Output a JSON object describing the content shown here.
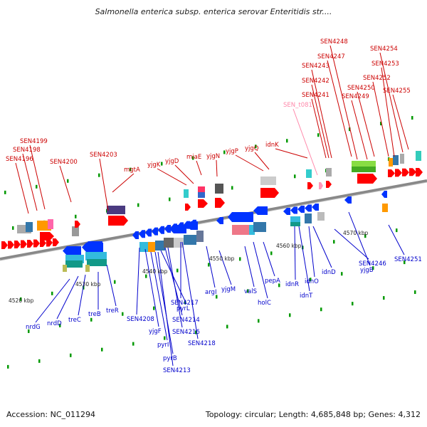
{
  "title": "Salmonella enterica subsp. enterica serovar Enteritidis str....",
  "accession": "Accession: NC_011294",
  "summary": "Topology: circular; Length: 4,685,848 bp; Genes: 4,312",
  "colors": {
    "plus_strand_label": "#cc0000",
    "minus_strand_label": "#0000cc",
    "rna_label": "#ff88aa",
    "plus_gene": "#ff0000",
    "minus_gene": "#0033ff",
    "backbone": "#888888"
  },
  "scale_labels": [
    "4520 kbp",
    "4530 kbp",
    "4540 kbp",
    "4550 kbp",
    "4560 kbp",
    "4570 kbp"
  ],
  "top_labels": [
    "SEN4196",
    "SEN4198",
    "SEN4199",
    "SEN4200",
    "SEN4203",
    "mgtA",
    "yjgK",
    "yjgD",
    "miaE",
    "yjgN",
    "yjgP",
    "yjgQ",
    "idnK",
    "SEN_t081",
    "SEN4241",
    "SEN4242",
    "SEN4243",
    "SEN4247",
    "SEN4248",
    "SEN4249",
    "SEN4250",
    "SEN4252",
    "SEN4253",
    "SEN4254",
    "SEN4255"
  ],
  "bottom_labels": [
    "nrdG",
    "nrdD",
    "treC",
    "treB",
    "treR",
    "SEN4208",
    "yjgF",
    "pyrI",
    "pyrB",
    "SEN4213",
    "pyrL",
    "SEN4214",
    "SEN4216",
    "SEN4217",
    "SEN4218",
    "argI",
    "yjgM",
    "valS",
    "holC",
    "pepA",
    "idnR",
    "idnT",
    "idnO",
    "idnD",
    "yjgB",
    "SEN4246",
    "SEN4251"
  ]
}
